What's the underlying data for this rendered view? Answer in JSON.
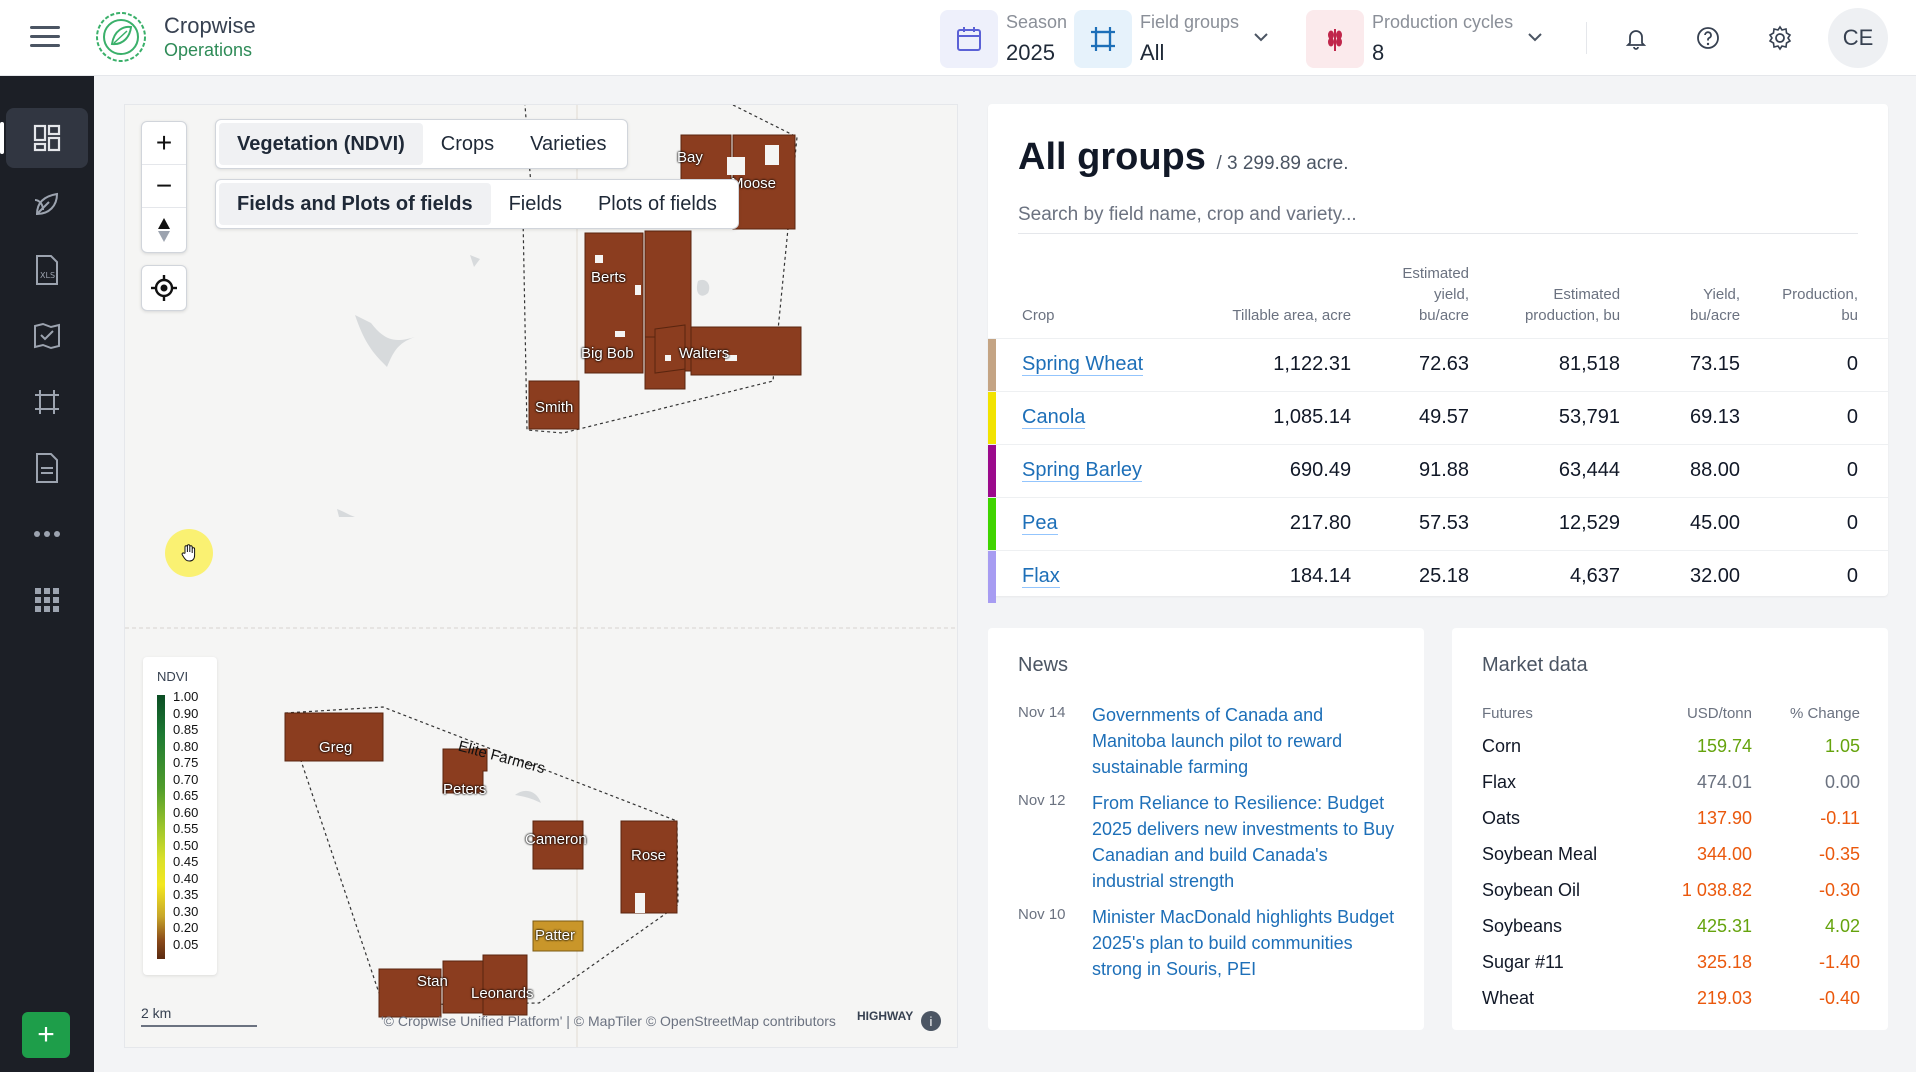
{
  "brand": {
    "name": "Cropwise",
    "sub": "Operations"
  },
  "header": {
    "season": {
      "label": "Season",
      "value": "2025",
      "icon": "calendar-icon"
    },
    "field_groups": {
      "label": "Field groups",
      "value": "All",
      "icon": "crop-frame-icon"
    },
    "production_cycles": {
      "label": "Production cycles",
      "value": "8",
      "icon": "wheat-icon"
    },
    "avatar": "CE"
  },
  "sidebar": [
    {
      "name": "dashboard-icon",
      "active": true
    },
    {
      "name": "leaf-icon"
    },
    {
      "name": "xls-file-icon"
    },
    {
      "name": "field-map-icon"
    },
    {
      "name": "crop-frame-icon"
    },
    {
      "name": "document-icon"
    },
    {
      "name": "more-icon"
    },
    {
      "name": "apps-grid-icon"
    }
  ],
  "map": {
    "layer_tabs": [
      "Vegetation (NDVI)",
      "Crops",
      "Varieties"
    ],
    "active_layer": "Vegetation (NDVI)",
    "view_tabs": [
      "Fields and Plots of fields",
      "Fields",
      "Plots of fields"
    ],
    "active_view": "Fields and Plots of fields",
    "legend_title": "NDVI",
    "legend_ticks": [
      "1.00",
      "0.90",
      "0.85",
      "0.80",
      "0.75",
      "0.70",
      "0.65",
      "0.60",
      "0.55",
      "0.50",
      "0.45",
      "0.40",
      "0.35",
      "0.30",
      "0.20",
      "0.05"
    ],
    "scale": "2 km",
    "attribution": "'© Cropwise Unified Platform' | © MapTiler © OpenStreetMap contributors",
    "highway": "HIGHWAY",
    "labels": {
      "bay": "Bay",
      "moose": "Moose",
      "berts": "Berts",
      "bigbob": "Big Bob",
      "walters": "Walters",
      "smith": "Smith",
      "greg": "Greg",
      "elite": "Elite Farmers",
      "peters": "Peters",
      "cameron": "Cameron",
      "rose": "Rose",
      "patter": "Patter",
      "stan": "Stan",
      "leonards": "Leonards"
    }
  },
  "groups": {
    "title": "All groups",
    "subtitle": "/ 3 299.89 acre.",
    "search_placeholder": "Search by field name, crop and variety...",
    "columns": [
      "Crop",
      "Tillable area, acre",
      "Estimated yield, bu/acre",
      "Estimated production, bu",
      "Yield, bu/acre",
      "Production, bu"
    ],
    "rows": [
      {
        "crop": "Spring Wheat",
        "color": "#c4a484",
        "area": "1,122.31",
        "est_yield": "72.63",
        "est_prod": "81,518",
        "yield": "73.15",
        "prod": "0"
      },
      {
        "crop": "Canola",
        "color": "#f2e300",
        "area": "1,085.14",
        "est_yield": "49.57",
        "est_prod": "53,791",
        "yield": "69.13",
        "prod": "0"
      },
      {
        "crop": "Spring Barley",
        "color": "#9b0a8c",
        "area": "690.49",
        "est_yield": "91.88",
        "est_prod": "63,444",
        "yield": "88.00",
        "prod": "0"
      },
      {
        "crop": "Pea",
        "color": "#3fd400",
        "area": "217.80",
        "est_yield": "57.53",
        "est_prod": "12,529",
        "yield": "45.00",
        "prod": "0"
      },
      {
        "crop": "Flax",
        "color": "#a79cf2",
        "area": "184.14",
        "est_yield": "25.18",
        "est_prod": "4,637",
        "yield": "32.00",
        "prod": "0"
      }
    ]
  },
  "news": {
    "title": "News",
    "items": [
      {
        "date": "Nov 14",
        "text": "Governments of Canada and Manitoba launch pilot to reward sustainable farming"
      },
      {
        "date": "Nov 12",
        "text": "From Reliance to Resilience: Budget 2025 delivers new investments to Buy Canadian and build Canada's industrial strength"
      },
      {
        "date": "Nov 10",
        "text": "Minister MacDonald highlights Budget 2025's plan to build communities strong in Souris, PEI"
      }
    ]
  },
  "market": {
    "title": "Market data",
    "columns": [
      "Futures",
      "USD/tonn",
      "% Change"
    ],
    "rows": [
      {
        "name": "Corn",
        "price": "159.74",
        "change": "1.05",
        "trend": "up"
      },
      {
        "name": "Flax",
        "price": "474.01",
        "change": "0.00",
        "trend": "flat"
      },
      {
        "name": "Oats",
        "price": "137.90",
        "change": "-0.11",
        "trend": "down"
      },
      {
        "name": "Soybean Meal",
        "price": "344.00",
        "change": "-0.35",
        "trend": "down"
      },
      {
        "name": "Soybean Oil",
        "price": "1 038.82",
        "change": "-0.30",
        "trend": "down"
      },
      {
        "name": "Soybeans",
        "price": "425.31",
        "change": "4.02",
        "trend": "up"
      },
      {
        "name": "Sugar #11",
        "price": "325.18",
        "change": "-1.40",
        "trend": "down"
      },
      {
        "name": "Wheat",
        "price": "219.03",
        "change": "-0.40",
        "trend": "down"
      }
    ]
  }
}
